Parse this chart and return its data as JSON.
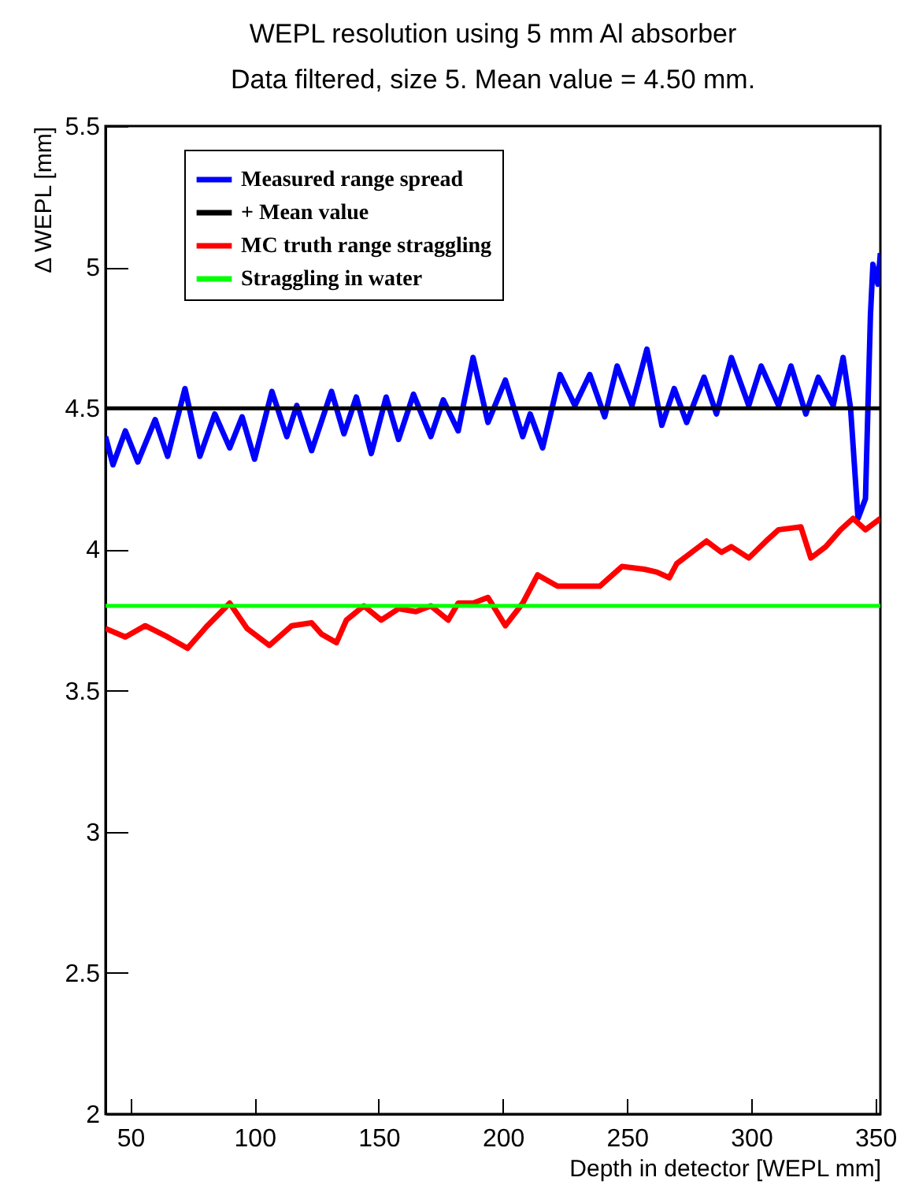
{
  "chart_data": {
    "type": "line",
    "title": "WEPL resolution using 5 mm Al absorber",
    "subtitle": "Data filtered, size 5. Mean value = 4.50 mm.",
    "xlabel": "Depth in detector [WEPL mm]",
    "ylabel": "Δ WEPL [mm]",
    "xlim": [
      40,
      352
    ],
    "xticks": [
      50,
      100,
      150,
      200,
      250,
      300,
      350
    ],
    "ylim": [
      2,
      5.5
    ],
    "yticks": [
      2,
      2.5,
      3,
      3.5,
      4,
      4.5,
      5,
      5.5
    ],
    "legend": "top left",
    "series": [
      {
        "name": "Measured range spread",
        "color": "#0000ff",
        "x": [
          40,
          43,
          48,
          53,
          60,
          65,
          72,
          78,
          84,
          90,
          95,
          100,
          107,
          113,
          117,
          123,
          131,
          136,
          141,
          147,
          153,
          158,
          164,
          171,
          176,
          182,
          188,
          194,
          201,
          208,
          211,
          216,
          223,
          229,
          235,
          241,
          246,
          252,
          258,
          264,
          269,
          274,
          281,
          286,
          292,
          299,
          304,
          311,
          316,
          322,
          327,
          333,
          337,
          340,
          343,
          346,
          348,
          349,
          351,
          352
        ],
        "values": [
          4.4,
          4.3,
          4.42,
          4.31,
          4.46,
          4.33,
          4.57,
          4.33,
          4.48,
          4.36,
          4.47,
          4.32,
          4.56,
          4.4,
          4.51,
          4.35,
          4.56,
          4.41,
          4.54,
          4.34,
          4.54,
          4.39,
          4.55,
          4.4,
          4.53,
          4.42,
          4.68,
          4.45,
          4.6,
          4.4,
          4.48,
          4.36,
          4.62,
          4.51,
          4.62,
          4.47,
          4.65,
          4.51,
          4.71,
          4.44,
          4.57,
          4.45,
          4.61,
          4.48,
          4.68,
          4.51,
          4.65,
          4.51,
          4.65,
          4.48,
          4.61,
          4.51,
          4.68,
          4.5,
          4.11,
          4.18,
          4.83,
          5.01,
          4.94,
          5.05
        ]
      },
      {
        "name": "+ Mean value",
        "color": "#000000",
        "x": [
          40,
          352
        ],
        "values": [
          4.5,
          4.5
        ]
      },
      {
        "name": "MC truth range straggling",
        "color": "#ff0000",
        "x": [
          40,
          48,
          56,
          65,
          73,
          81,
          90,
          97,
          106,
          115,
          123,
          127,
          133,
          137,
          144,
          151,
          158,
          165,
          171,
          178,
          182,
          188,
          194,
          201,
          208,
          214,
          222,
          232,
          239,
          248,
          257,
          262,
          267,
          270,
          276,
          282,
          288,
          292,
          299,
          306,
          311,
          320,
          324,
          330,
          336,
          341,
          346,
          352
        ],
        "values": [
          3.72,
          3.69,
          3.73,
          3.69,
          3.65,
          3.73,
          3.81,
          3.72,
          3.66,
          3.73,
          3.74,
          3.7,
          3.67,
          3.75,
          3.8,
          3.75,
          3.79,
          3.78,
          3.8,
          3.75,
          3.81,
          3.81,
          3.83,
          3.73,
          3.81,
          3.91,
          3.87,
          3.87,
          3.87,
          3.94,
          3.93,
          3.92,
          3.9,
          3.95,
          3.99,
          4.03,
          3.99,
          4.01,
          3.97,
          4.03,
          4.07,
          4.08,
          3.97,
          4.01,
          4.07,
          4.11,
          4.07,
          4.11
        ]
      },
      {
        "name": "Straggling in water",
        "color": "#00ff00",
        "x": [
          40,
          352
        ],
        "values": [
          3.8,
          3.8
        ]
      }
    ]
  }
}
